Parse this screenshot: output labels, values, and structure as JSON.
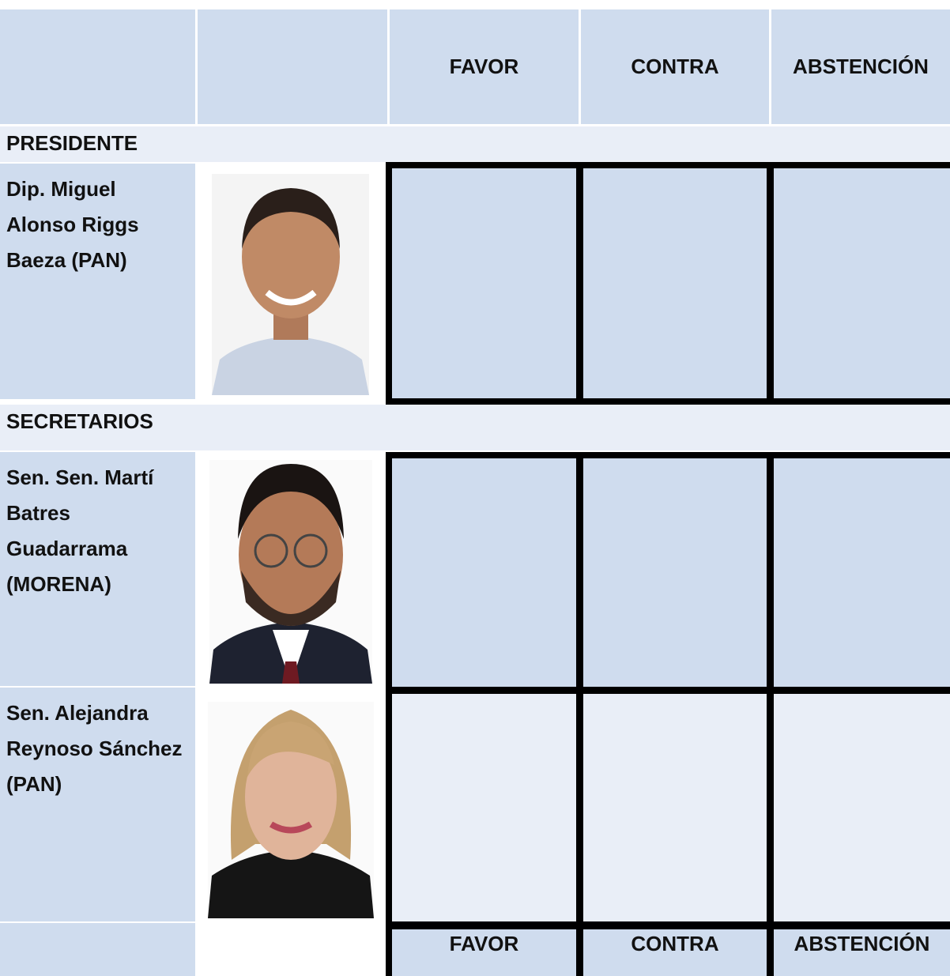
{
  "header": {
    "columns": [
      "FAVOR",
      "CONTRA",
      "ABSTENCIÓN"
    ]
  },
  "sections": [
    {
      "title": "PRESIDENTE",
      "members": [
        {
          "name": "Dip. Miguel Alonso Riggs Baeza (PAN)"
        }
      ]
    },
    {
      "title": "SECRETARIOS",
      "members": [
        {
          "name": "Sen. Sen. Martí Batres Guadarrama (MORENA)"
        },
        {
          "name": "Sen. Alejandra Reynoso Sánchez (PAN)"
        }
      ]
    }
  ],
  "footer": {
    "columns": [
      "FAVOR",
      "CONTRA",
      "ABSTENCIÓN"
    ]
  }
}
